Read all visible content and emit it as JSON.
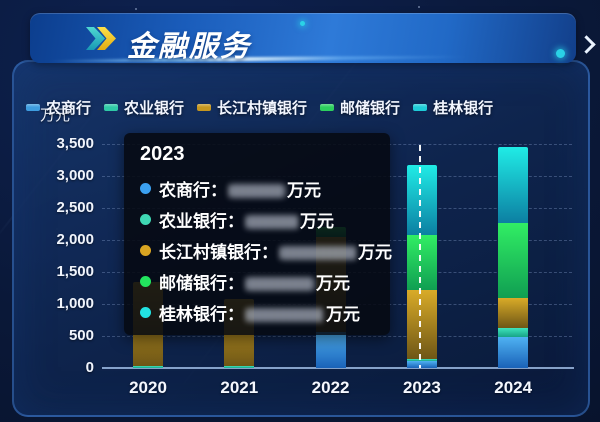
{
  "header": {
    "title": "金融服务",
    "decor_icon": "double-chevron-right",
    "next_icon": "chevron-right"
  },
  "axis_unit": "万元",
  "legend": [
    {
      "label": "农商行",
      "color": "#3e9de0"
    },
    {
      "label": "农业银行",
      "color": "#2fc9a6"
    },
    {
      "label": "长江村镇银行",
      "color": "#c6971f"
    },
    {
      "label": "邮储银行",
      "color": "#2dd05e"
    },
    {
      "label": "桂林银行",
      "color": "#1eccd8"
    }
  ],
  "chart_data": {
    "type": "bar",
    "stacked": true,
    "title": "金融服务",
    "ylabel": "万元",
    "ylim": [
      0,
      3500
    ],
    "ytick_step": 500,
    "yticks": [
      "0",
      "500",
      "1,000",
      "1,500",
      "2,000",
      "2,500",
      "3,000",
      "3,500"
    ],
    "categories": [
      "2020",
      "2021",
      "2022",
      "2023",
      "2024"
    ],
    "grid": "dashed-horizontal",
    "legend_position": "top",
    "highlighted_category": "2023",
    "series": [
      {
        "name": "农商行",
        "color_top": "#4fb2f2",
        "color_bottom": "#1a62b8",
        "values": [
          0,
          0,
          560,
          110,
          490
        ]
      },
      {
        "name": "农业银行",
        "color_top": "#3fe4bc",
        "color_bottom": "#17a386",
        "values": [
          30,
          30,
          0,
          25,
          140
        ]
      },
      {
        "name": "长江村镇银行",
        "color_top": "#d9ab28",
        "color_bottom": "#6e5616",
        "values": [
          1320,
          1050,
          1490,
          1090,
          470
        ]
      },
      {
        "name": "邮储银行",
        "color_top": "#31ee64",
        "color_bottom": "#109e52",
        "values": [
          0,
          0,
          150,
          860,
          1170
        ]
      },
      {
        "name": "桂林银行",
        "color_top": "#20ece6",
        "color_bottom": "#0c7fa2",
        "values": [
          0,
          0,
          0,
          1085,
          1180
        ]
      }
    ]
  },
  "tooltip": {
    "title": "2023",
    "unit": "万元",
    "value_separator": "：",
    "rows": [
      {
        "label": "农商行",
        "dot_color": "#3ba0f0",
        "value_redacted": true,
        "redacted_width": 56
      },
      {
        "label": "农业银行",
        "dot_color": "#3fd8b4",
        "value_redacted": true,
        "redacted_width": 52
      },
      {
        "label": "长江村镇银行",
        "dot_color": "#d9a522",
        "value_redacted": true,
        "redacted_width": 76
      },
      {
        "label": "邮储银行",
        "dot_color": "#22e45e",
        "value_redacted": true,
        "redacted_width": 68
      },
      {
        "label": "桂林银行",
        "dot_color": "#22e2e2",
        "value_redacted": true,
        "redacted_width": 78
      }
    ]
  }
}
